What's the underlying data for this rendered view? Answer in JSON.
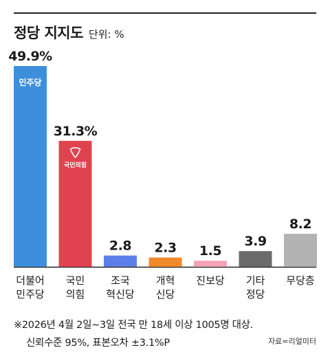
{
  "chart_data": {
    "type": "bar",
    "title": "정당 지지도",
    "unit_label": "단위: %",
    "categories": [
      "더불어\n민주당",
      "국민\n의힘",
      "조국\n혁신당",
      "개혁\n신당",
      "진보당",
      "기타\n정당",
      "무당층"
    ],
    "values": [
      49.9,
      31.3,
      2.8,
      2.3,
      1.5,
      3.9,
      8.2
    ],
    "value_labels": [
      "49.9%",
      "31.3%",
      "2.8",
      "2.3",
      "1.5",
      "3.9",
      "8.2"
    ],
    "colors": [
      "#3d8fdc",
      "#e0434f",
      "#5b7fe6",
      "#f08a2a",
      "#f5a3b7",
      "#6b6b6b",
      "#b3b3b3"
    ],
    "bar_logos": [
      "민주당",
      "국민의힘",
      "",
      "",
      "",
      "",
      ""
    ],
    "ylim": [
      0,
      49.9
    ],
    "grid": false,
    "legend": "none"
  },
  "footnote": {
    "line1": "※2026년 4월 2일~3일 전국 만 18세 이상 1005명 대상.",
    "line2": "신뢰수준 95%, 표본오차 ±3.1%P"
  },
  "source": "자료=리얼미터"
}
